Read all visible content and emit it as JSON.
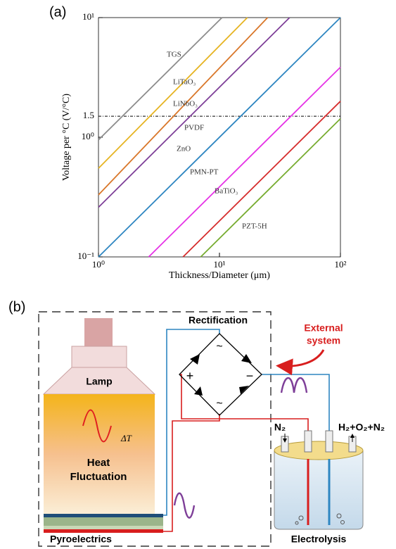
{
  "panel_labels": [
    "(a)",
    "(b)"
  ],
  "chart_data": {
    "type": "line",
    "x_label": "Thickness/Diameter (μm)",
    "y_label": "Voltage per °C (V/°C)",
    "log_x": true,
    "log_y": true,
    "xlim": [
      1,
      100
    ],
    "ylim": [
      0.1,
      10
    ],
    "xticks": [
      {
        "value": 1,
        "label": "10⁰"
      },
      {
        "value": 10,
        "label": "10¹"
      },
      {
        "value": 100,
        "label": "10²"
      }
    ],
    "yticks": [
      {
        "value": 0.1,
        "label": "10⁻¹"
      },
      {
        "value": 1,
        "label": "10⁰"
      },
      {
        "value": 10,
        "label": "10¹"
      }
    ],
    "reference_lines": [
      1.5
    ],
    "series": [
      {
        "name": "TGS",
        "color": "#8c8c8c",
        "x": [
          1,
          10.5
        ],
        "values": [
          0.95,
          10
        ]
      },
      {
        "name": "LiTaO₃",
        "color": "#e6b422",
        "x": [
          1,
          17
        ],
        "values": [
          0.55,
          10
        ]
      },
      {
        "name": "LiNbO₃",
        "color": "#d9772a",
        "x": [
          1,
          25
        ],
        "values": [
          0.33,
          10
        ]
      },
      {
        "name": "PVDF",
        "color": "#7e3f98",
        "x": [
          1,
          38
        ],
        "values": [
          0.26,
          10
        ]
      },
      {
        "name": "ZnO",
        "color": "#2e86c1",
        "x": [
          1,
          100
        ],
        "values": [
          0.1,
          10
        ]
      },
      {
        "name": "PMN-PT",
        "color": "#e633e6",
        "x": [
          2.6,
          100
        ],
        "values": [
          0.1,
          3.85
        ]
      },
      {
        "name": "BaTiO₃",
        "color": "#d62d2d",
        "x": [
          5,
          100
        ],
        "values": [
          0.1,
          2
        ]
      },
      {
        "name": "PZT-5H",
        "color": "#77ac30",
        "x": [
          7,
          100
        ],
        "values": [
          0.1,
          1.43
        ]
      }
    ]
  },
  "diagram": {
    "rectification": "Rectification",
    "external": [
      "External",
      "system"
    ],
    "lamp": "Lamp",
    "delta_t": "ΔT",
    "heat": [
      "Heat",
      "Fluctuation"
    ],
    "pyroelectrics": "Pyroelectrics",
    "electrolysis": "Electrolysis",
    "n2": "N₂",
    "products": "H₂+O₂+N₂",
    "plus": "+",
    "minus": "−",
    "ac": [
      "~",
      "~"
    ]
  }
}
